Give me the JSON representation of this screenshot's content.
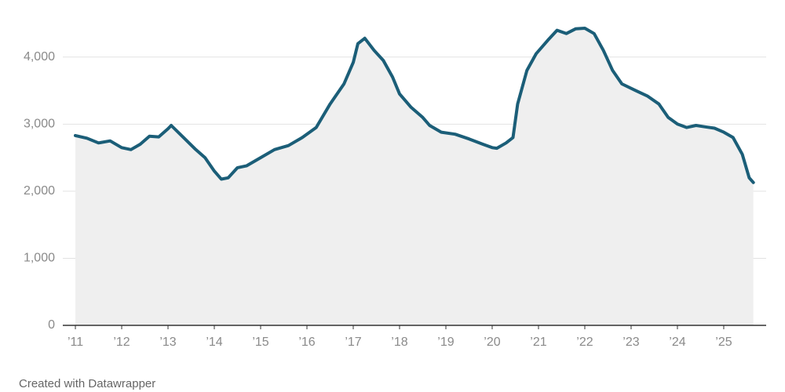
{
  "chart_data": {
    "type": "area",
    "x": [
      2011.0,
      2011.25,
      2011.5,
      2011.75,
      2012.0,
      2012.2,
      2012.4,
      2012.6,
      2012.8,
      2013.0,
      2013.07,
      2013.35,
      2013.6,
      2013.8,
      2014.0,
      2014.15,
      2014.3,
      2014.5,
      2014.7,
      2015.0,
      2015.3,
      2015.6,
      2015.9,
      2016.2,
      2016.5,
      2016.8,
      2017.0,
      2017.1,
      2017.25,
      2017.45,
      2017.65,
      2017.85,
      2018.0,
      2018.25,
      2018.5,
      2018.65,
      2018.9,
      2019.2,
      2019.5,
      2019.8,
      2020.0,
      2020.1,
      2020.3,
      2020.45,
      2020.55,
      2020.75,
      2020.95,
      2021.2,
      2021.4,
      2021.6,
      2021.8,
      2022.0,
      2022.2,
      2022.4,
      2022.6,
      2022.8,
      2023.1,
      2023.35,
      2023.6,
      2023.8,
      2024.0,
      2024.2,
      2024.4,
      2024.6,
      2024.8,
      2025.0,
      2025.2,
      2025.4,
      2025.55,
      2025.64
    ],
    "values": [
      2830,
      2790,
      2720,
      2750,
      2650,
      2620,
      2700,
      2820,
      2810,
      2930,
      2980,
      2790,
      2620,
      2500,
      2300,
      2180,
      2200,
      2350,
      2380,
      2500,
      2620,
      2680,
      2800,
      2950,
      3300,
      3600,
      3920,
      4200,
      4280,
      4100,
      3950,
      3700,
      3450,
      3250,
      3100,
      2980,
      2880,
      2850,
      2780,
      2700,
      2650,
      2640,
      2720,
      2800,
      3300,
      3800,
      4050,
      4250,
      4400,
      4350,
      4420,
      4430,
      4350,
      4100,
      3800,
      3600,
      3500,
      3420,
      3300,
      3100,
      3000,
      2950,
      2980,
      2960,
      2940,
      2880,
      2800,
      2550,
      2200,
      2130
    ],
    "color": "#1b5e78",
    "area_color": "#efefef",
    "xlim": [
      2010.83,
      2025.95
    ],
    "xticks": [
      {
        "value": 2011,
        "label": "’11"
      },
      {
        "value": 2012,
        "label": "’12"
      },
      {
        "value": 2013,
        "label": "’13"
      },
      {
        "value": 2014,
        "label": "’14"
      },
      {
        "value": 2015,
        "label": "’15"
      },
      {
        "value": 2016,
        "label": "’16"
      },
      {
        "value": 2017,
        "label": "’17"
      },
      {
        "value": 2018,
        "label": "’18"
      },
      {
        "value": 2019,
        "label": "’19"
      },
      {
        "value": 2020,
        "label": "’20"
      },
      {
        "value": 2021,
        "label": "’21"
      },
      {
        "value": 2022,
        "label": "’22"
      },
      {
        "value": 2023,
        "label": "’23"
      },
      {
        "value": 2024,
        "label": "’24"
      },
      {
        "value": 2025,
        "label": "’25"
      }
    ],
    "ylim": [
      0,
      4500
    ],
    "yticks": [
      0,
      {
        "value": 1000,
        "label": "1,000"
      },
      {
        "value": 2000,
        "label": "2,000"
      },
      {
        "value": 3000,
        "label": "3,000"
      },
      {
        "value": 4000,
        "label": "4,000"
      }
    ],
    "grid": true,
    "footer": "Created with Datawrapper"
  }
}
